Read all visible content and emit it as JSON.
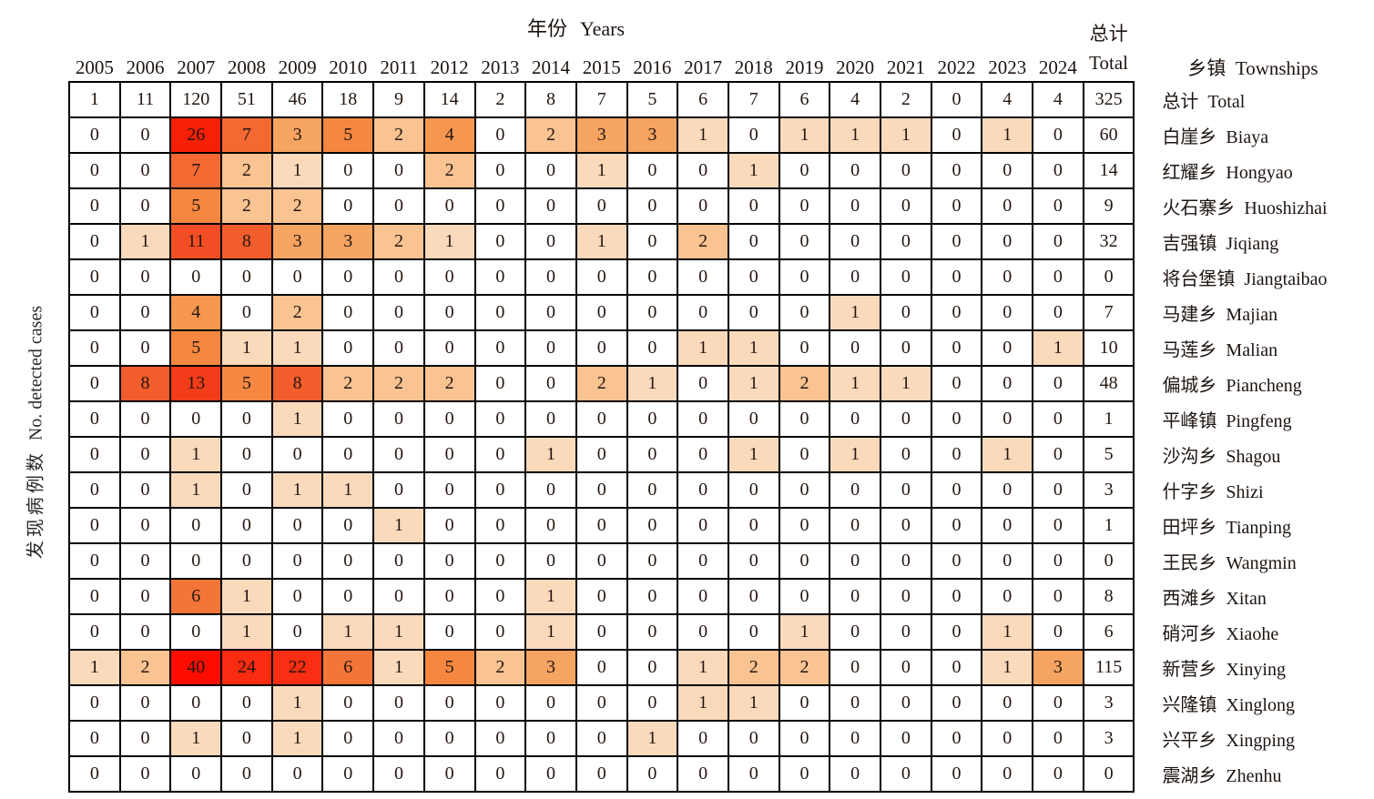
{
  "axis": {
    "x_title_zh": "年份",
    "x_title_en": "Years",
    "y_label_zh": "发现病例数",
    "y_label_en": "No. detected cases",
    "right_header_zh": "乡镇",
    "right_header_en": "Townships",
    "total_header_zh": "总计",
    "total_header_en": "Total"
  },
  "chart_data": {
    "type": "heatmap",
    "title": "年份 Years",
    "x_axis_label": "年份 Years",
    "y_axis_label": "发现病例数 No. detected cases",
    "row_axis_label": "乡镇 Townships",
    "total_column_label": "总计 Total",
    "x": [
      "2005",
      "2006",
      "2007",
      "2008",
      "2009",
      "2010",
      "2011",
      "2012",
      "2013",
      "2014",
      "2015",
      "2016",
      "2017",
      "2018",
      "2019",
      "2020",
      "2021",
      "2022",
      "2023",
      "2024"
    ],
    "rows": [
      {
        "zh": "总计",
        "en": "Total",
        "is_total": true,
        "values": [
          1,
          11,
          120,
          51,
          46,
          18,
          9,
          14,
          2,
          8,
          7,
          5,
          6,
          7,
          6,
          4,
          2,
          0,
          4,
          4
        ],
        "total": 325
      },
      {
        "zh": "白崖乡",
        "en": "Biaya",
        "is_total": false,
        "values": [
          0,
          0,
          26,
          7,
          3,
          5,
          2,
          4,
          0,
          2,
          3,
          3,
          1,
          0,
          1,
          1,
          1,
          0,
          1,
          0
        ],
        "total": 60
      },
      {
        "zh": "红耀乡",
        "en": "Hongyao",
        "is_total": false,
        "values": [
          0,
          0,
          7,
          2,
          1,
          0,
          0,
          2,
          0,
          0,
          1,
          0,
          0,
          1,
          0,
          0,
          0,
          0,
          0,
          0
        ],
        "total": 14
      },
      {
        "zh": "火石寨乡",
        "en": "Huoshizhai",
        "is_total": false,
        "values": [
          0,
          0,
          5,
          2,
          2,
          0,
          0,
          0,
          0,
          0,
          0,
          0,
          0,
          0,
          0,
          0,
          0,
          0,
          0,
          0
        ],
        "total": 9
      },
      {
        "zh": "吉强镇",
        "en": "Jiqiang",
        "is_total": false,
        "values": [
          0,
          1,
          11,
          8,
          3,
          3,
          2,
          1,
          0,
          0,
          1,
          0,
          2,
          0,
          0,
          0,
          0,
          0,
          0,
          0
        ],
        "total": 32
      },
      {
        "zh": "将台堡镇",
        "en": "Jiangtaibao",
        "is_total": false,
        "values": [
          0,
          0,
          0,
          0,
          0,
          0,
          0,
          0,
          0,
          0,
          0,
          0,
          0,
          0,
          0,
          0,
          0,
          0,
          0,
          0
        ],
        "total": 0
      },
      {
        "zh": "马建乡",
        "en": "Majian",
        "is_total": false,
        "values": [
          0,
          0,
          4,
          0,
          2,
          0,
          0,
          0,
          0,
          0,
          0,
          0,
          0,
          0,
          0,
          1,
          0,
          0,
          0,
          0
        ],
        "total": 7
      },
      {
        "zh": "马莲乡",
        "en": "Malian",
        "is_total": false,
        "values": [
          0,
          0,
          5,
          1,
          1,
          0,
          0,
          0,
          0,
          0,
          0,
          0,
          1,
          1,
          0,
          0,
          0,
          0,
          0,
          1
        ],
        "total": 10
      },
      {
        "zh": "偏城乡",
        "en": "Piancheng",
        "is_total": false,
        "values": [
          0,
          8,
          13,
          5,
          8,
          2,
          2,
          2,
          0,
          0,
          2,
          1,
          0,
          1,
          2,
          1,
          1,
          0,
          0,
          0
        ],
        "total": 48
      },
      {
        "zh": "平峰镇",
        "en": "Pingfeng",
        "is_total": false,
        "values": [
          0,
          0,
          0,
          0,
          1,
          0,
          0,
          0,
          0,
          0,
          0,
          0,
          0,
          0,
          0,
          0,
          0,
          0,
          0,
          0
        ],
        "total": 1
      },
      {
        "zh": "沙沟乡",
        "en": "Shagou",
        "is_total": false,
        "values": [
          0,
          0,
          1,
          0,
          0,
          0,
          0,
          0,
          0,
          1,
          0,
          0,
          0,
          1,
          0,
          1,
          0,
          0,
          1,
          0
        ],
        "total": 5
      },
      {
        "zh": "什字乡",
        "en": "Shizi",
        "is_total": false,
        "values": [
          0,
          0,
          1,
          0,
          1,
          1,
          0,
          0,
          0,
          0,
          0,
          0,
          0,
          0,
          0,
          0,
          0,
          0,
          0,
          0
        ],
        "total": 3
      },
      {
        "zh": "田坪乡",
        "en": "Tianping",
        "is_total": false,
        "values": [
          0,
          0,
          0,
          0,
          0,
          0,
          1,
          0,
          0,
          0,
          0,
          0,
          0,
          0,
          0,
          0,
          0,
          0,
          0,
          0
        ],
        "total": 1
      },
      {
        "zh": "王民乡",
        "en": "Wangmin",
        "is_total": false,
        "values": [
          0,
          0,
          0,
          0,
          0,
          0,
          0,
          0,
          0,
          0,
          0,
          0,
          0,
          0,
          0,
          0,
          0,
          0,
          0,
          0
        ],
        "total": 0
      },
      {
        "zh": "西滩乡",
        "en": "Xitan",
        "is_total": false,
        "values": [
          0,
          0,
          6,
          1,
          0,
          0,
          0,
          0,
          0,
          1,
          0,
          0,
          0,
          0,
          0,
          0,
          0,
          0,
          0,
          0
        ],
        "total": 8
      },
      {
        "zh": "硝河乡",
        "en": "Xiaohe",
        "is_total": false,
        "values": [
          0,
          0,
          0,
          1,
          0,
          1,
          1,
          0,
          0,
          1,
          0,
          0,
          0,
          0,
          1,
          0,
          0,
          0,
          1,
          0
        ],
        "total": 6
      },
      {
        "zh": "新营乡",
        "en": "Xinying",
        "is_total": false,
        "values": [
          1,
          2,
          40,
          24,
          22,
          6,
          1,
          5,
          2,
          3,
          0,
          0,
          1,
          2,
          2,
          0,
          0,
          0,
          1,
          3
        ],
        "total": 115
      },
      {
        "zh": "兴隆镇",
        "en": "Xinglong",
        "is_total": false,
        "values": [
          0,
          0,
          0,
          0,
          1,
          0,
          0,
          0,
          0,
          0,
          0,
          0,
          1,
          1,
          0,
          0,
          0,
          0,
          0,
          0
        ],
        "total": 3
      },
      {
        "zh": "兴平乡",
        "en": "Xingping",
        "is_total": false,
        "values": [
          0,
          0,
          1,
          0,
          1,
          0,
          0,
          0,
          0,
          0,
          0,
          1,
          0,
          0,
          0,
          0,
          0,
          0,
          0,
          0
        ],
        "total": 3
      },
      {
        "zh": "震湖乡",
        "en": "Zhenhu",
        "is_total": false,
        "values": [
          0,
          0,
          0,
          0,
          0,
          0,
          0,
          0,
          0,
          0,
          0,
          0,
          0,
          0,
          0,
          0,
          0,
          0,
          0,
          0
        ],
        "total": 0
      }
    ],
    "colors": {
      "zero_cell": "#ffffff",
      "grid_line": "#000000",
      "scale_anchors": [
        [
          1,
          "#fbdabb"
        ],
        [
          2,
          "#f9c392"
        ],
        [
          3,
          "#f6a462"
        ],
        [
          4,
          "#f69750"
        ],
        [
          5,
          "#f58740"
        ],
        [
          6,
          "#f47538"
        ],
        [
          8,
          "#f35d2c"
        ],
        [
          11,
          "#f24d24"
        ],
        [
          13,
          "#f23b18"
        ],
        [
          22,
          "#f92e13"
        ],
        [
          24,
          "#f92b10"
        ],
        [
          26,
          "#f81f07"
        ],
        [
          40,
          "#fd0d00"
        ]
      ]
    },
    "legend": "none",
    "grid": true
  }
}
